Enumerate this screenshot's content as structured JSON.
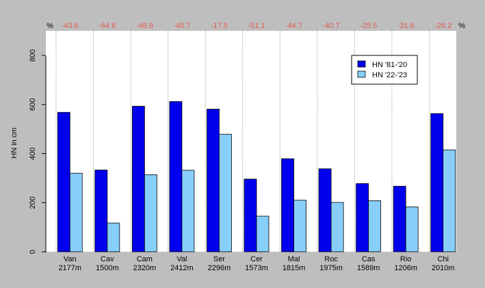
{
  "chart_data": {
    "type": "bar",
    "ylabel": "HN in cm",
    "ylim": [
      0,
      900
    ],
    "yticks": [
      0,
      200,
      400,
      600,
      800
    ],
    "pct_symbol": "%",
    "categories": [
      {
        "name": "Van",
        "elev": "2177m",
        "pct": "-43.6"
      },
      {
        "name": "Cav",
        "elev": "1500m",
        "pct": "-64.6"
      },
      {
        "name": "Cam",
        "elev": "2320m",
        "pct": "-46.9"
      },
      {
        "name": "Val",
        "elev": "2412m",
        "pct": "-45.7"
      },
      {
        "name": "Ser",
        "elev": "2296m",
        "pct": "-17.5"
      },
      {
        "name": "Cer",
        "elev": "1573m",
        "pct": "-51.1"
      },
      {
        "name": "Mal",
        "elev": "1815m",
        "pct": "-44.7"
      },
      {
        "name": "Roc",
        "elev": "1975m",
        "pct": "-40.7"
      },
      {
        "name": "Cas",
        "elev": "1589m",
        "pct": "-25.5"
      },
      {
        "name": "Rio",
        "elev": "1206m",
        "pct": "-31.6"
      },
      {
        "name": "Chi",
        "elev": "2010m",
        "pct": "-26.2"
      }
    ],
    "series": [
      {
        "name": "HN '81-'20",
        "color": "#0000ee",
        "values": [
          568,
          333,
          593,
          612,
          581,
          296,
          379,
          338,
          278,
          267,
          563
        ]
      },
      {
        "name": "HN '22-'23",
        "color": "#87cefa",
        "values": [
          320,
          117,
          314,
          332,
          479,
          145,
          210,
          201,
          208,
          183,
          415
        ]
      }
    ],
    "pct_color": "#e05a4e",
    "legend_position": "top-right",
    "grid": "vertical-dotted"
  }
}
